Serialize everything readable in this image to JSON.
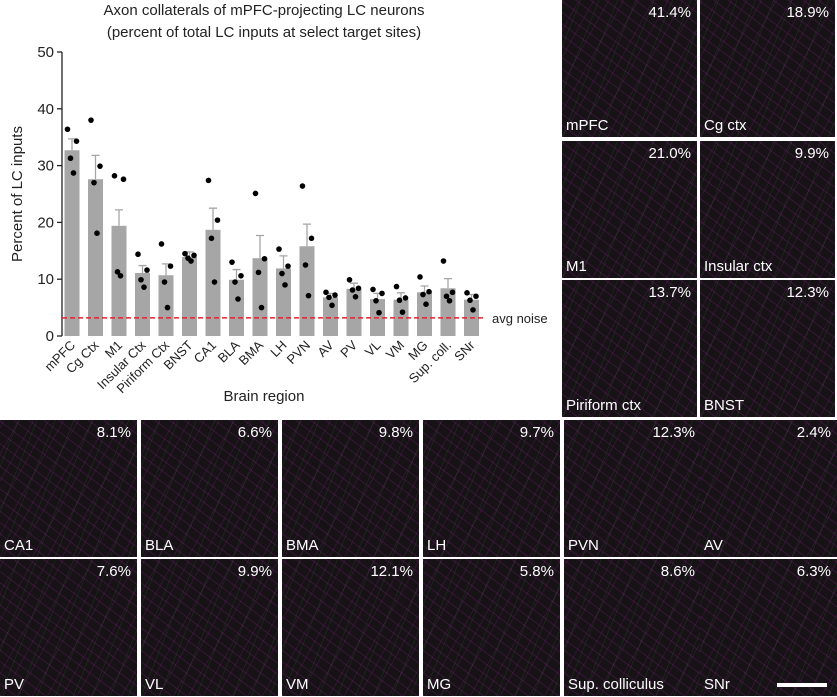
{
  "chart_data": {
    "type": "bar",
    "title": "Axon collaterals of mPFC-projecting LC neurons",
    "subtitle": "(percent of total LC inputs at select target sites)",
    "x_label": "Brain region",
    "y_label": "Percent of LC inputs",
    "categories": [
      "mPFC",
      "Cg Ctx",
      "M1",
      "Insular Ctx",
      "Piriform Ctx",
      "BNST",
      "CA1",
      "BLA",
      "BMA",
      "LH",
      "PVN",
      "AV",
      "PV",
      "VL",
      "VM",
      "MG",
      "Sup. coll.",
      "SNr"
    ],
    "values": [
      32.7,
      27.6,
      19.4,
      11.1,
      10.7,
      13.9,
      18.7,
      9.9,
      13.7,
      11.9,
      15.8,
      6.8,
      8.3,
      6.5,
      6.4,
      7.7,
      8.4,
      6.4
    ],
    "errors": [
      2.0,
      4.2,
      2.8,
      1.3,
      2.0,
      0.9,
      3.8,
      1.8,
      4.0,
      2.2,
      3.9,
      0.7,
      1.0,
      1.0,
      1.2,
      1.1,
      1.7,
      0.9
    ],
    "points": [
      [
        36.4,
        34.3,
        31.3,
        28.7
      ],
      [
        38.0,
        29.9,
        27.0,
        18.1
      ],
      [
        28.2,
        27.6,
        11.3,
        10.6
      ],
      [
        14.4,
        11.6,
        9.9,
        8.6
      ],
      [
        16.2,
        12.3,
        9.5,
        5.0
      ],
      [
        14.5,
        14.2,
        13.7,
        13.2
      ],
      [
        27.4,
        20.4,
        17.2,
        9.5
      ],
      [
        13.0,
        10.6,
        9.5,
        6.5
      ],
      [
        25.1,
        13.6,
        11.2,
        5.0
      ],
      [
        15.3,
        12.3,
        11.0,
        9.0
      ],
      [
        26.4,
        17.2,
        12.5,
        7.1
      ],
      [
        7.7,
        7.2,
        6.8,
        5.4
      ],
      [
        9.9,
        8.4,
        8.1,
        6.9
      ],
      [
        8.2,
        7.5,
        6.2,
        4.1
      ],
      [
        8.7,
        6.7,
        6.3,
        4.2
      ],
      [
        10.4,
        7.8,
        7.3,
        5.6
      ],
      [
        13.2,
        7.7,
        7.0,
        6.2
      ],
      [
        7.6,
        7.0,
        6.3,
        4.6
      ]
    ],
    "color": "#a6a6a6",
    "point_color": "#000000",
    "noise_line": {
      "value": 3.2,
      "label": "avg noise",
      "color": "#e0252b"
    },
    "ylim": [
      0,
      50
    ],
    "yticks": [
      0,
      10,
      20,
      30,
      40,
      50
    ]
  },
  "panels": [
    {
      "label": "mPFC",
      "percent": "41.4%"
    },
    {
      "label": "Cg ctx",
      "percent": "18.9%"
    },
    {
      "label": "M1",
      "percent": "21.0%"
    },
    {
      "label": "Insular ctx",
      "percent": "9.9%"
    },
    {
      "label": "Piriform ctx",
      "percent": "13.7%"
    },
    {
      "label": "BNST",
      "percent": "12.3%"
    },
    {
      "label": "CA1",
      "percent": "8.1%"
    },
    {
      "label": "BLA",
      "percent": "6.6%"
    },
    {
      "label": "BMA",
      "percent": "9.8%"
    },
    {
      "label": "LH",
      "percent": "9.7%"
    },
    {
      "label": "PVN",
      "percent": "12.3%"
    },
    {
      "label": "AV",
      "percent": "2.4%"
    },
    {
      "label": "PV",
      "percent": "7.6%"
    },
    {
      "label": "VL",
      "percent": "9.9%"
    },
    {
      "label": "VM",
      "percent": "12.1%"
    },
    {
      "label": "MG",
      "percent": "5.8%"
    },
    {
      "label": "Sup. colliculus",
      "percent": "8.6%"
    },
    {
      "label": "SNr",
      "percent": "6.3%"
    }
  ]
}
